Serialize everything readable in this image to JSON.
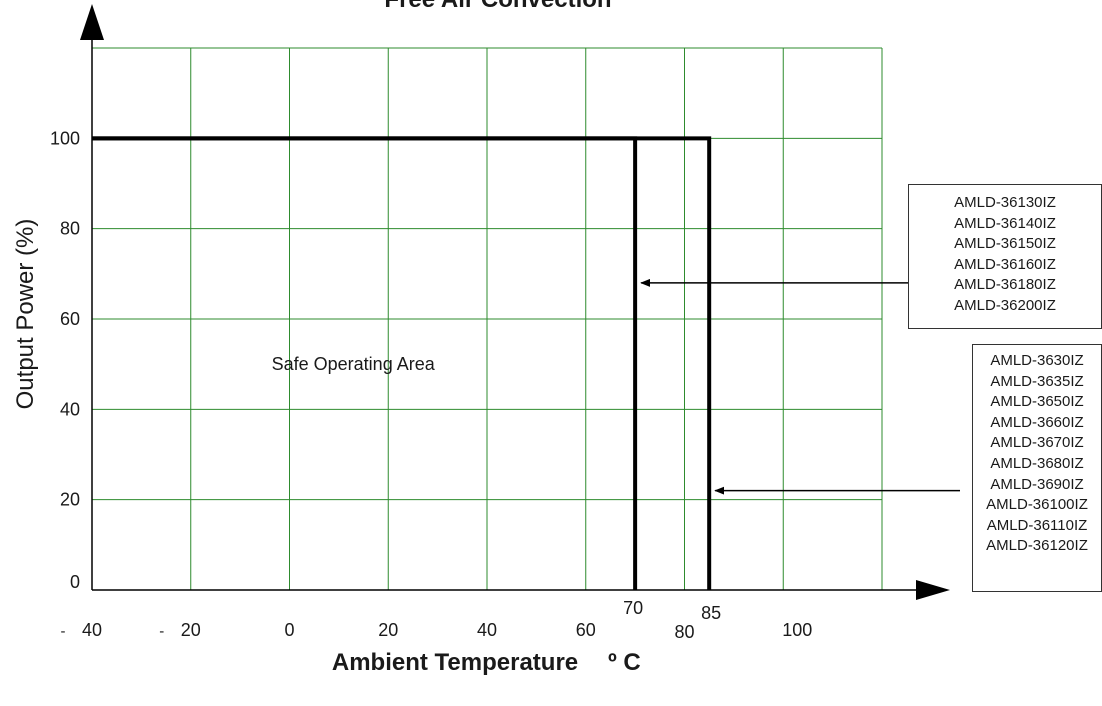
{
  "chart_data": {
    "type": "line",
    "title": "Free Air Convection",
    "xlabel": "Ambient Temperature",
    "xlabel_unit": "º C",
    "ylabel": "Output Power (%)",
    "x_ticks": [
      {
        "value": -40,
        "prefix": "-",
        "label": "40"
      },
      {
        "value": -20,
        "prefix": "-",
        "label": "20"
      },
      {
        "value": 0,
        "prefix": "",
        "label": "0"
      },
      {
        "value": 20,
        "prefix": "",
        "label": "20"
      },
      {
        "value": 40,
        "prefix": "",
        "label": "40"
      },
      {
        "value": 60,
        "prefix": "",
        "label": "60"
      },
      {
        "value": 80,
        "prefix": "",
        "label": "80"
      },
      {
        "value": 100,
        "prefix": "",
        "label": "100"
      }
    ],
    "y_ticks": [
      {
        "value": 0,
        "label": "0"
      },
      {
        "value": 20,
        "label": "20"
      },
      {
        "value": 40,
        "label": "40"
      },
      {
        "value": 60,
        "label": "60"
      },
      {
        "value": 80,
        "label": "80"
      },
      {
        "value": 100,
        "label": "100"
      }
    ],
    "xlim": [
      -40,
      120
    ],
    "ylim": [
      0,
      120
    ],
    "grid": true,
    "grid_color": "#2e8b2e",
    "line_color": "#000000",
    "series": [
      {
        "x": [
          -40,
          70,
          70
        ],
        "y": [
          100,
          100,
          0
        ],
        "cutoff_label": "70"
      },
      {
        "x": [
          -40,
          85,
          85
        ],
        "y": [
          100,
          100,
          0
        ],
        "cutoff_label": "85"
      }
    ],
    "annotations": [
      {
        "text": "Safe Operating Area",
        "x": 5,
        "y": 50
      }
    ],
    "legend_groups": [
      {
        "models": [
          "AMLD-36130IZ",
          "AMLD-36140IZ",
          "AMLD-36150IZ",
          "AMLD-36160IZ",
          "AMLD-36180IZ",
          "AMLD-36200IZ"
        ],
        "arrow_target": {
          "x": 70,
          "y": 68
        }
      },
      {
        "models": [
          "AMLD-3630IZ",
          "AMLD-3635IZ",
          "AMLD-3650IZ",
          "AMLD-3660IZ",
          "AMLD-3670IZ",
          "AMLD-3680IZ",
          "AMLD-3690IZ",
          "AMLD-36100IZ",
          "AMLD-36110IZ",
          "AMLD-36120IZ"
        ],
        "arrow_target": {
          "x": 85,
          "y": 22
        }
      }
    ]
  }
}
